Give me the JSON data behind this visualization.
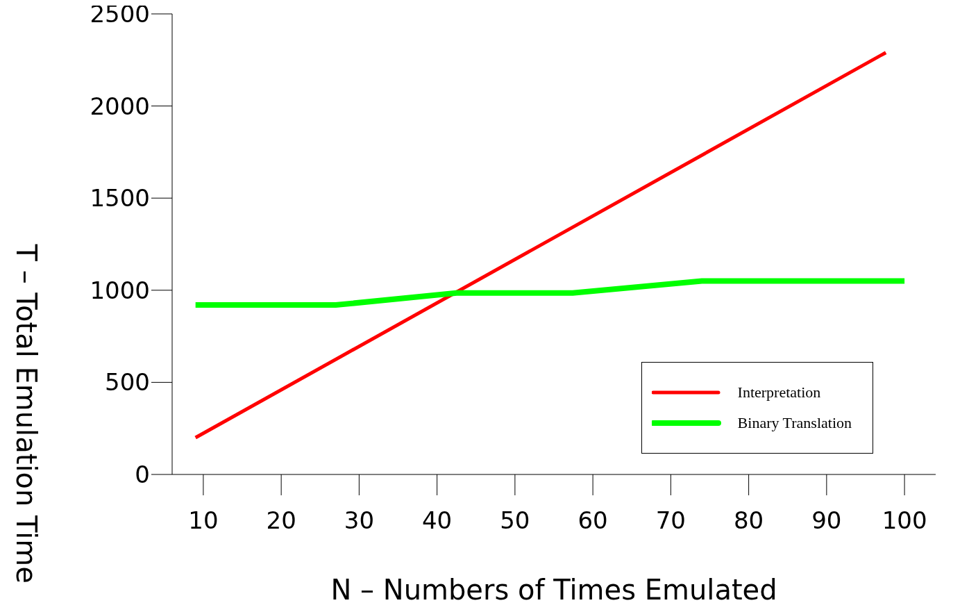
{
  "chart_data": {
    "type": "line",
    "xlabel": "N – Numbers of Times Emulated",
    "ylabel": "T – Total Emulation Time",
    "xlim": [
      6,
      104
    ],
    "xticks": [
      10,
      20,
      30,
      40,
      50,
      60,
      70,
      80,
      90,
      100
    ],
    "ylim": [
      0,
      2500
    ],
    "yticks": [
      0,
      500,
      1000,
      1500,
      2000,
      2500
    ],
    "grid": false,
    "legend": "bottom right",
    "marker": "none",
    "line_style": "solid",
    "series": [
      {
        "name": "Interpretation",
        "color": "#ff0000",
        "x": [
          9,
          97.6
        ],
        "values": [
          200,
          2290
        ]
      },
      {
        "name": "Binary Translation",
        "color": "#00ff00",
        "x": [
          9,
          27,
          42.5,
          57.4,
          74,
          100
        ],
        "values": [
          920,
          920,
          985,
          985,
          1050,
          1050
        ]
      }
    ]
  }
}
